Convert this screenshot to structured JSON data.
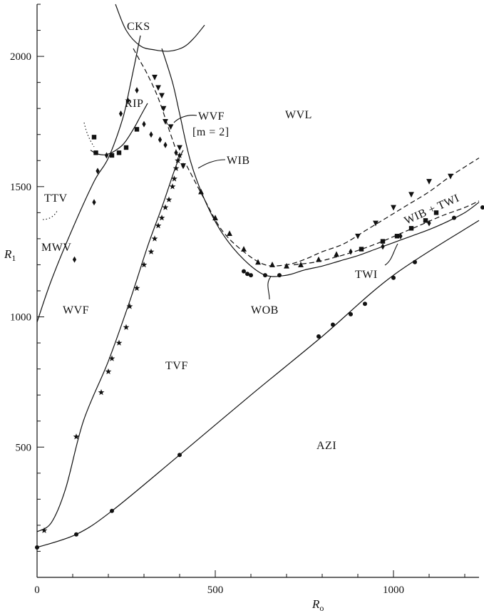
{
  "chart_data": {
    "type": "scatter",
    "title": "",
    "xlabel": "R",
    "xlabel_sub": "o",
    "ylabel": "R",
    "ylabel_sub": "1",
    "xlim": [
      0,
      1240
    ],
    "ylim": [
      0,
      2200
    ],
    "xticks": [
      0,
      500,
      1000
    ],
    "yticks": [
      500,
      1000,
      1500,
      2000
    ],
    "grid": false,
    "legend": "none",
    "regions": [
      "CKS",
      "RIP",
      "WVF",
      "[m = 2]",
      "WVL",
      "WIB",
      "TTV",
      "MWV",
      "WVF",
      "TVF",
      "WOB",
      "TWI",
      "WIB + TWI",
      "AZI"
    ],
    "boundaries": [
      {
        "name": "AZI",
        "style": "solid",
        "x": [
          0,
          110,
          210,
          400,
          600,
          800,
          1000,
          1240
        ],
        "y": [
          115,
          165,
          255,
          470,
          700,
          925,
          1160,
          1370
        ]
      },
      {
        "name": "TVF",
        "style": "solid",
        "x": [
          0,
          40,
          80,
          130,
          200,
          260,
          310,
          350,
          390,
          410
        ],
        "y": [
          175,
          210,
          340,
          600,
          830,
          1060,
          1270,
          1420,
          1580,
          1640
        ]
      },
      {
        "name": "MWV",
        "style": "solid",
        "x": [
          0,
          40,
          100,
          160,
          200,
          240,
          260,
          290
        ],
        "y": [
          980,
          1140,
          1340,
          1520,
          1610,
          1760,
          1880,
          2080
        ]
      },
      {
        "name": "CKS",
        "style": "solid",
        "x": [
          220,
          250,
          290,
          330,
          370,
          410,
          440,
          470
        ],
        "y": [
          2200,
          2100,
          2040,
          2025,
          2020,
          2035,
          2070,
          2120
        ]
      },
      {
        "name": "RIP",
        "style": "solid",
        "x": [
          150,
          170,
          200,
          240,
          270,
          290,
          310
        ],
        "y": [
          1640,
          1625,
          1625,
          1660,
          1720,
          1770,
          1820
        ]
      },
      {
        "name": "WVF_upper",
        "style": "dashed",
        "x": [
          270,
          290,
          310,
          340,
          370,
          390
        ],
        "y": [
          2030,
          1980,
          1930,
          1840,
          1720,
          1640
        ]
      },
      {
        "name": "WVL",
        "style": "solid",
        "x": [
          350,
          380,
          400,
          430,
          470,
          520,
          580,
          640,
          700,
          750,
          800,
          850,
          900,
          950,
          1000,
          1050,
          1100,
          1150,
          1200,
          1240
        ],
        "y": [
          2030,
          1900,
          1780,
          1600,
          1450,
          1320,
          1220,
          1160,
          1160,
          1180,
          1195,
          1215,
          1235,
          1260,
          1285,
          1310,
          1335,
          1365,
          1400,
          1440
        ]
      },
      {
        "name": "WIB",
        "style": "dashed",
        "x": [
          420,
          470,
          520,
          580,
          640,
          700,
          750,
          800,
          860,
          920,
          980,
          1040,
          1100,
          1160,
          1240
        ],
        "y": [
          1580,
          1450,
          1330,
          1250,
          1200,
          1200,
          1220,
          1250,
          1280,
          1330,
          1380,
          1430,
          1480,
          1540,
          1610
        ]
      },
      {
        "name": "TWI",
        "style": "dashed",
        "x": [
          720,
          780,
          840,
          900,
          960,
          1020,
          1080,
          1140,
          1200,
          1240
        ],
        "y": [
          1200,
          1210,
          1230,
          1255,
          1285,
          1320,
          1355,
          1390,
          1420,
          1445
        ]
      }
    ],
    "markers": [
      {
        "symbol": "circle",
        "x": [
          0,
          110,
          210,
          400,
          790,
          830,
          880,
          920,
          1000,
          1060,
          1170,
          1250,
          580,
          590,
          600,
          640,
          680
        ],
        "y": [
          115,
          165,
          255,
          470,
          925,
          970,
          1010,
          1050,
          1150,
          1210,
          1380,
          1420,
          1175,
          1165,
          1160,
          1160,
          1160
        ]
      },
      {
        "symbol": "star",
        "x": [
          20,
          110,
          180,
          200,
          210,
          230,
          250,
          260,
          280,
          300,
          320,
          330,
          340,
          350,
          360,
          370,
          380,
          385,
          390,
          395,
          400
        ],
        "y": [
          180,
          540,
          710,
          790,
          840,
          900,
          960,
          1040,
          1110,
          1200,
          1250,
          1300,
          1350,
          1380,
          1420,
          1450,
          1500,
          1530,
          1570,
          1600,
          1620
        ]
      },
      {
        "symbol": "diamond",
        "x": [
          160,
          170,
          195,
          235,
          255,
          280,
          300,
          320,
          345,
          360,
          390,
          410,
          105,
          880,
          970,
          1020,
          1100
        ],
        "y": [
          1440,
          1560,
          1620,
          1780,
          1830,
          1870,
          1740,
          1700,
          1680,
          1660,
          1630,
          1580,
          1220,
          1250,
          1270,
          1310,
          1360
        ]
      },
      {
        "symbol": "square",
        "x": [
          160,
          165,
          210,
          230,
          250,
          280,
          910,
          970,
          1010,
          1050,
          1090,
          1120
        ],
        "y": [
          1690,
          1630,
          1620,
          1630,
          1650,
          1720,
          1260,
          1290,
          1310,
          1340,
          1370,
          1400
        ]
      },
      {
        "symbol": "triangle-down",
        "x": [
          330,
          340,
          350,
          355,
          360,
          375,
          400,
          410,
          900,
          950,
          1000,
          1050,
          1100,
          1160
        ],
        "y": [
          1920,
          1880,
          1850,
          1800,
          1750,
          1730,
          1650,
          1580,
          1310,
          1360,
          1420,
          1470,
          1520,
          1540
        ]
      },
      {
        "symbol": "triangle-up",
        "x": [
          460,
          500,
          540,
          580,
          620,
          660,
          700,
          740,
          790,
          840
        ],
        "y": [
          1480,
          1380,
          1320,
          1260,
          1210,
          1200,
          1195,
          1200,
          1220,
          1240
        ]
      }
    ]
  }
}
